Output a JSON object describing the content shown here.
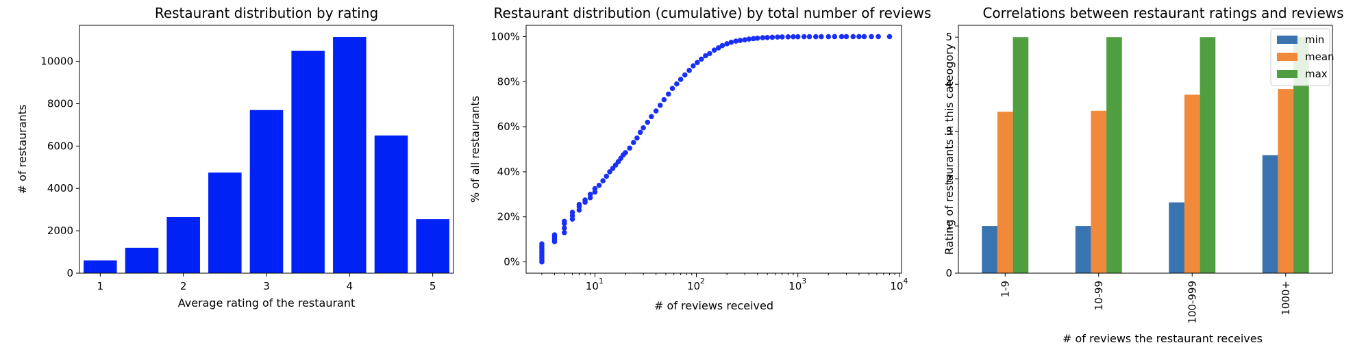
{
  "colors": {
    "bar_blue": "#0022f5",
    "scatter_blue": "#1a2ff5",
    "min": "#3a74b0",
    "mean": "#f0893a",
    "max": "#4f9e3f"
  },
  "chart_data": [
    {
      "type": "bar",
      "title": "Restaurant distribution by rating",
      "xlabel": "Average rating of the restaurant",
      "ylabel": "# of restaurants",
      "x": [
        1.0,
        1.5,
        2.0,
        2.5,
        3.0,
        3.5,
        4.0,
        4.5,
        5.0
      ],
      "values": [
        600,
        1200,
        2650,
        4750,
        7700,
        10500,
        11150,
        6500,
        2550
      ],
      "xlim": [
        0.75,
        5.25
      ],
      "ylim": [
        0,
        11700
      ],
      "xticks": [
        1,
        2,
        3,
        4,
        5
      ],
      "xtick_labels": [
        "1",
        "2",
        "3",
        "4",
        "5"
      ],
      "yticks": [
        0,
        2000,
        4000,
        6000,
        8000,
        10000
      ],
      "ytick_labels": [
        "0",
        "2000",
        "4000",
        "6000",
        "8000",
        "10000"
      ],
      "grid": false
    },
    {
      "type": "scatter",
      "title": "Restaurant distribution (cumulative) by total number of reviews",
      "xlabel": "# of reviews received",
      "ylabel": "% of all restaurants",
      "x_scale": "log",
      "xlim": [
        2.1,
        10500
      ],
      "ylim": [
        -5,
        105
      ],
      "x": [
        3,
        3,
        3,
        3,
        3,
        3,
        3,
        3,
        3,
        4,
        4,
        4,
        4,
        5,
        5,
        5,
        5,
        6,
        6,
        6,
        7,
        7,
        7,
        8,
        8,
        9,
        9,
        10,
        10,
        11,
        12,
        13,
        14,
        15,
        16,
        17,
        18,
        19,
        20,
        22,
        24,
        26,
        28,
        30,
        33,
        36,
        40,
        44,
        48,
        53,
        58,
        64,
        70,
        77,
        85,
        93,
        102,
        112,
        123,
        135,
        150,
        165,
        180,
        200,
        220,
        245,
        270,
        300,
        330,
        365,
        400,
        450,
        500,
        560,
        630,
        700,
        800,
        900,
        1000,
        1150,
        1300,
        1500,
        1700,
        2000,
        2300,
        2700,
        3000,
        3500,
        4000,
        4500,
        5300,
        6200,
        8000
      ],
      "y": [
        0,
        1,
        2,
        3,
        4,
        5,
        6,
        7,
        8,
        9,
        10,
        11,
        12,
        13,
        15,
        17,
        18,
        19,
        20.5,
        22,
        23,
        24.5,
        25.5,
        26.5,
        27.5,
        28.5,
        30,
        31,
        32.5,
        34,
        36,
        38,
        40,
        41.5,
        43,
        44.5,
        46,
        47.5,
        48.5,
        50.5,
        53,
        55,
        57.5,
        59.5,
        62,
        64.5,
        67,
        69.5,
        72,
        74.5,
        77,
        79,
        81,
        83,
        85,
        87,
        88.5,
        90,
        91.5,
        92.5,
        94,
        95,
        96,
        96.8,
        97.5,
        98,
        98.3,
        98.6,
        98.9,
        99.1,
        99.3,
        99.5,
        99.6,
        99.7,
        99.8,
        99.85,
        99.9,
        99.92,
        99.94,
        99.95,
        99.96,
        99.97,
        99.98,
        99.98,
        99.99,
        99.99,
        99.99,
        100,
        100,
        100,
        100,
        100,
        100
      ],
      "xticks": [
        10,
        100,
        1000,
        10000
      ],
      "xtick_labels": [
        "10",
        "10",
        "10",
        "10"
      ],
      "xtick_exponents": [
        "1",
        "2",
        "3",
        "4"
      ],
      "yticks": [
        0,
        20,
        40,
        60,
        80,
        100
      ],
      "ytick_labels": [
        "0%",
        "20%",
        "40%",
        "60%",
        "80%",
        "100%"
      ],
      "grid": false
    },
    {
      "type": "bar",
      "title": "Correlations between restaurant ratings and reviews",
      "xlabel": "# of reviews the restaurant receives",
      "ylabel": "Rating of restaurants in this cateogory",
      "categories": [
        "1-9",
        "10-99",
        "100-999",
        "1000+"
      ],
      "series": [
        {
          "name": "min",
          "values": [
            1.0,
            1.0,
            1.5,
            2.5
          ]
        },
        {
          "name": "mean",
          "values": [
            3.42,
            3.44,
            3.78,
            3.9
          ]
        },
        {
          "name": "max",
          "values": [
            5.0,
            5.0,
            5.0,
            5.0
          ]
        }
      ],
      "ylim": [
        0,
        5.25
      ],
      "yticks": [
        0,
        1,
        2,
        3,
        4,
        5
      ],
      "ytick_labels": [
        "0",
        "1",
        "2",
        "3",
        "4",
        "5"
      ],
      "legend": "top-right",
      "grid": false
    }
  ]
}
